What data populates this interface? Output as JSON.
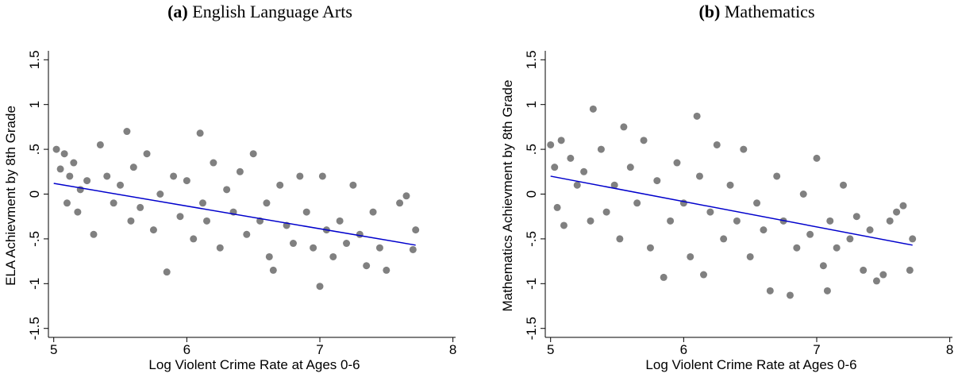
{
  "chart_data": [
    {
      "type": "scatter",
      "label": "(a)",
      "title": "English Language Arts",
      "x_label": "Log Violent Crime Rate at Ages 0-6",
      "y_label": "ELA Achievment by 8th Grade",
      "xlim": [
        4.96,
        8.02
      ],
      "ylim": [
        -1.6,
        1.6
      ],
      "xticks": [
        5,
        6,
        7,
        8
      ],
      "yticks": [
        -1.5,
        -1,
        {
          "value": -0.5,
          "label": "-.5"
        },
        0,
        {
          "value": 0.5,
          "label": ".5"
        },
        1,
        1.5
      ],
      "series": [
        {
          "type": "scatter",
          "color": "#808080",
          "x": [
            5.02,
            5.05,
            5.08,
            5.1,
            5.12,
            5.15,
            5.18,
            5.2,
            5.25,
            5.3,
            5.35,
            5.4,
            5.45,
            5.5,
            5.55,
            5.58,
            5.6,
            5.65,
            5.7,
            5.75,
            5.8,
            5.85,
            5.9,
            5.95,
            6.0,
            6.05,
            6.1,
            6.12,
            6.15,
            6.2,
            6.25,
            6.3,
            6.35,
            6.4,
            6.45,
            6.5,
            6.55,
            6.6,
            6.62,
            6.65,
            6.7,
            6.75,
            6.8,
            6.85,
            6.9,
            6.95,
            7.0,
            7.02,
            7.05,
            7.1,
            7.15,
            7.2,
            7.25,
            7.3,
            7.35,
            7.4,
            7.45,
            7.5,
            7.6,
            7.65,
            7.7,
            7.72
          ],
          "values": [
            0.5,
            0.28,
            0.45,
            -0.1,
            0.2,
            0.35,
            -0.2,
            0.05,
            0.15,
            -0.45,
            0.55,
            0.2,
            -0.1,
            0.1,
            0.7,
            -0.3,
            0.3,
            -0.15,
            0.45,
            -0.4,
            0.0,
            -0.87,
            0.2,
            -0.25,
            0.15,
            -0.5,
            0.68,
            -0.1,
            -0.3,
            0.35,
            -0.6,
            0.05,
            -0.2,
            0.25,
            -0.45,
            0.45,
            -0.3,
            -0.1,
            -0.7,
            -0.85,
            0.1,
            -0.35,
            -0.55,
            0.2,
            -0.2,
            -0.6,
            -1.03,
            0.2,
            -0.4,
            -0.7,
            -0.3,
            -0.55,
            0.1,
            -0.45,
            -0.8,
            -0.2,
            -0.6,
            -0.85,
            -0.1,
            -0.02,
            -0.62,
            -0.4
          ]
        },
        {
          "type": "line",
          "color": "#0000cc",
          "x": [
            5.0,
            7.72
          ],
          "values": [
            0.12,
            -0.57
          ]
        }
      ]
    },
    {
      "type": "scatter",
      "label": "(b)",
      "title": "Mathematics",
      "x_label": "Log Violent Crime Rate at Ages 0-6",
      "y_label": "Mathematics Achievment by 8th Grade",
      "xlim": [
        4.96,
        8.02
      ],
      "ylim": [
        -1.6,
        1.6
      ],
      "xticks": [
        5,
        6,
        7,
        8
      ],
      "yticks": [
        -1.5,
        -1,
        {
          "value": -0.5,
          "label": "-.5"
        },
        0,
        {
          "value": 0.5,
          "label": ".5"
        },
        1,
        1.5
      ],
      "series": [
        {
          "type": "scatter",
          "color": "#808080",
          "x": [
            5.0,
            5.03,
            5.05,
            5.08,
            5.1,
            5.15,
            5.2,
            5.25,
            5.3,
            5.32,
            5.38,
            5.42,
            5.48,
            5.52,
            5.55,
            5.6,
            5.65,
            5.7,
            5.75,
            5.8,
            5.85,
            5.9,
            5.95,
            6.0,
            6.05,
            6.1,
            6.12,
            6.15,
            6.2,
            6.25,
            6.3,
            6.35,
            6.4,
            6.45,
            6.5,
            6.55,
            6.6,
            6.65,
            6.7,
            6.75,
            6.8,
            6.85,
            6.9,
            6.95,
            7.0,
            7.05,
            7.08,
            7.1,
            7.15,
            7.2,
            7.25,
            7.3,
            7.35,
            7.4,
            7.45,
            7.5,
            7.55,
            7.6,
            7.65,
            7.7,
            7.72
          ],
          "values": [
            0.55,
            0.3,
            -0.15,
            0.6,
            -0.35,
            0.4,
            0.1,
            0.25,
            -0.3,
            0.95,
            0.5,
            -0.2,
            0.1,
            -0.5,
            0.75,
            0.3,
            -0.1,
            0.6,
            -0.6,
            0.15,
            -0.93,
            -0.3,
            0.35,
            -0.1,
            -0.7,
            0.87,
            0.2,
            -0.9,
            -0.2,
            0.55,
            -0.5,
            0.1,
            -0.3,
            0.5,
            -0.7,
            -0.1,
            -0.4,
            -1.08,
            0.2,
            -0.3,
            -1.13,
            -0.6,
            0.0,
            -0.45,
            0.4,
            -0.8,
            -1.08,
            -0.3,
            -0.6,
            0.1,
            -0.5,
            -0.25,
            -0.85,
            -0.4,
            -0.97,
            -0.9,
            -0.3,
            -0.2,
            -0.13,
            -0.85,
            -0.5
          ]
        },
        {
          "type": "line",
          "color": "#0000cc",
          "x": [
            5.0,
            7.72
          ],
          "values": [
            0.2,
            -0.57
          ]
        }
      ]
    }
  ]
}
